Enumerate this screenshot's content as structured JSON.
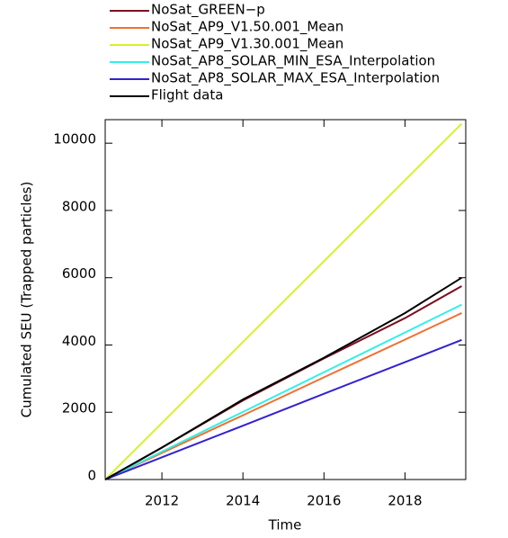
{
  "chart_data": {
    "type": "line",
    "x_label": "Time",
    "y_label": "Cumulated SEU (Trapped particles)",
    "x": [
      2010.6,
      2012,
      2014,
      2016,
      2018,
      2019.4
    ],
    "series": [
      {
        "name": "NoSat_GREEN−p",
        "color": "#7b1020",
        "values": [
          0,
          950,
          2350,
          3600,
          4800,
          5750
        ]
      },
      {
        "name": "NoSat_AP9_V1.50.001_Mean",
        "color": "#f07030",
        "values": [
          0,
          790,
          1910,
          3040,
          4160,
          4950
        ]
      },
      {
        "name": "NoSat_AP9_V1.30.001_Mean",
        "color": "#d8f030",
        "values": [
          0,
          1680,
          4090,
          6490,
          8900,
          10580
        ]
      },
      {
        "name": "NoSat_AP8_SOLAR_MIN_ESA_Interpolation",
        "color": "#30f0e8",
        "values": [
          0,
          830,
          2010,
          3190,
          4370,
          5200
        ]
      },
      {
        "name": "NoSat_AP8_SOLAR_MAX_ESA_Interpolation",
        "color": "#3322d0",
        "values": [
          0,
          660,
          1600,
          2550,
          3490,
          4150
        ]
      },
      {
        "name": "Flight data",
        "color": "#000000",
        "values": [
          0,
          950,
          2380,
          3620,
          4950,
          6000
        ]
      }
    ],
    "xlim": [
      2010.6,
      2019.5
    ],
    "xticks": [
      2012,
      2014,
      2016,
      2018
    ],
    "ylim": [
      0,
      10700
    ],
    "yticks": [
      0,
      2000,
      4000,
      6000,
      8000,
      10000
    ],
    "grid": false
  }
}
